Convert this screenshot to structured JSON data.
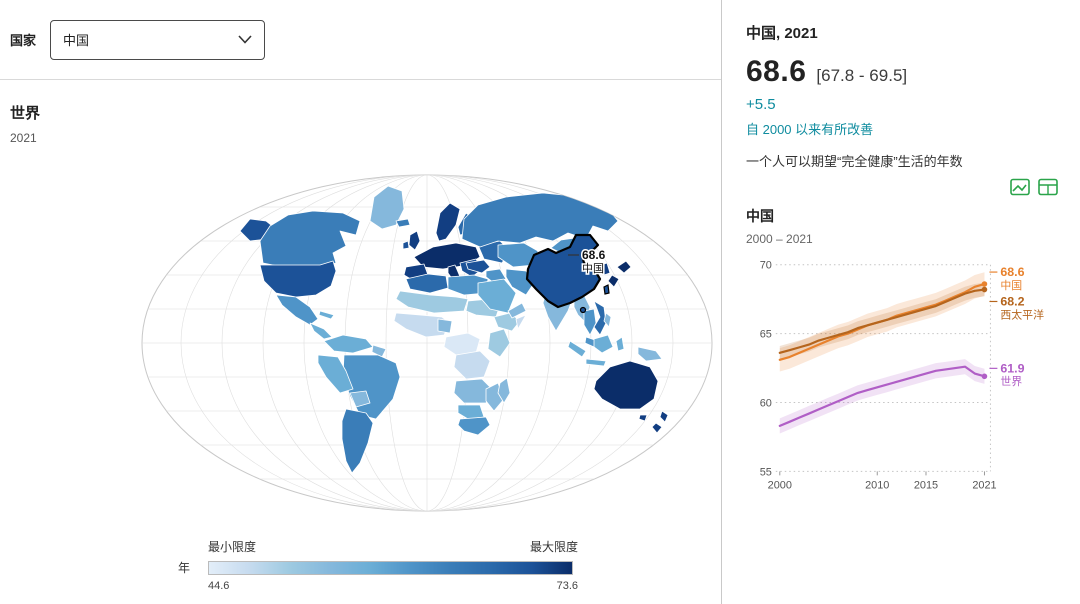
{
  "header": {
    "country_label": "国家",
    "country_value": "中国"
  },
  "world_section": {
    "title": "世界",
    "year": "2021"
  },
  "map": {
    "annotation_value": "68.6",
    "annotation_label": "中国"
  },
  "legend": {
    "unit_label": "年",
    "min_label": "最小限度",
    "max_label": "最大限度",
    "min_value": "44.6",
    "max_value": "73.6",
    "colors": [
      "#e3eef9",
      "#c6dbef",
      "#9ecae1",
      "#85b8dc",
      "#6baed6",
      "#4f94c8",
      "#3a7db8",
      "#2b6aab",
      "#1c5298",
      "#0b2d69"
    ]
  },
  "panel": {
    "title": "中国, 2021",
    "value": "68.6",
    "uncertainty": "[67.8 - 69.5]",
    "change": "+5.5",
    "change_note": "自 2000 以来有所改善",
    "description": "一个人可以期望“完全健康”生活的年数",
    "chart_title": "中国",
    "chart_range": "2000 – 2021"
  },
  "colors": {
    "accent_teal": "#0f8c9f",
    "icon_green": "#2aa44a",
    "china_series": "#e8822d",
    "western_pacific_series": "#b5651d",
    "world_series": "#b05ec6"
  },
  "chart_data": {
    "type": "line",
    "title": "中国",
    "subtitle": "2000 – 2021",
    "x": [
      2000,
      2001,
      2002,
      2003,
      2004,
      2005,
      2006,
      2007,
      2008,
      2009,
      2010,
      2011,
      2012,
      2013,
      2014,
      2015,
      2016,
      2017,
      2018,
      2019,
      2020,
      2021
    ],
    "ylim": [
      55,
      70
    ],
    "yticks": [
      55,
      60,
      65,
      70
    ],
    "xticks": [
      2000,
      2010,
      2015,
      2021
    ],
    "grid": true,
    "legend_position": "right",
    "series": [
      {
        "name": "中国",
        "color": "#e8822d",
        "band": 0.85,
        "end_label": "68.6",
        "label_dy": -8,
        "values": [
          63.1,
          63.3,
          63.6,
          63.9,
          64.2,
          64.5,
          64.8,
          65.0,
          65.3,
          65.6,
          65.8,
          66.0,
          66.3,
          66.5,
          66.7,
          66.9,
          67.1,
          67.4,
          67.7,
          68.0,
          68.4,
          68.6
        ]
      },
      {
        "name": "西太平洋",
        "color": "#b5651d",
        "band": 0.5,
        "end_label": "68.2",
        "label_dy": 16,
        "values": [
          63.6,
          63.8,
          64.0,
          64.2,
          64.5,
          64.7,
          64.9,
          65.1,
          65.4,
          65.6,
          65.8,
          66.0,
          66.2,
          66.4,
          66.6,
          66.8,
          67.0,
          67.3,
          67.6,
          67.9,
          68.1,
          68.2
        ]
      },
      {
        "name": "世界",
        "color": "#b05ec6",
        "band": 0.55,
        "end_label": "61.9",
        "label_dy": -4,
        "values": [
          58.3,
          58.6,
          58.9,
          59.2,
          59.5,
          59.8,
          60.1,
          60.4,
          60.7,
          60.9,
          61.1,
          61.3,
          61.5,
          61.7,
          61.9,
          62.1,
          62.3,
          62.4,
          62.5,
          62.6,
          62.1,
          61.9
        ]
      }
    ]
  }
}
